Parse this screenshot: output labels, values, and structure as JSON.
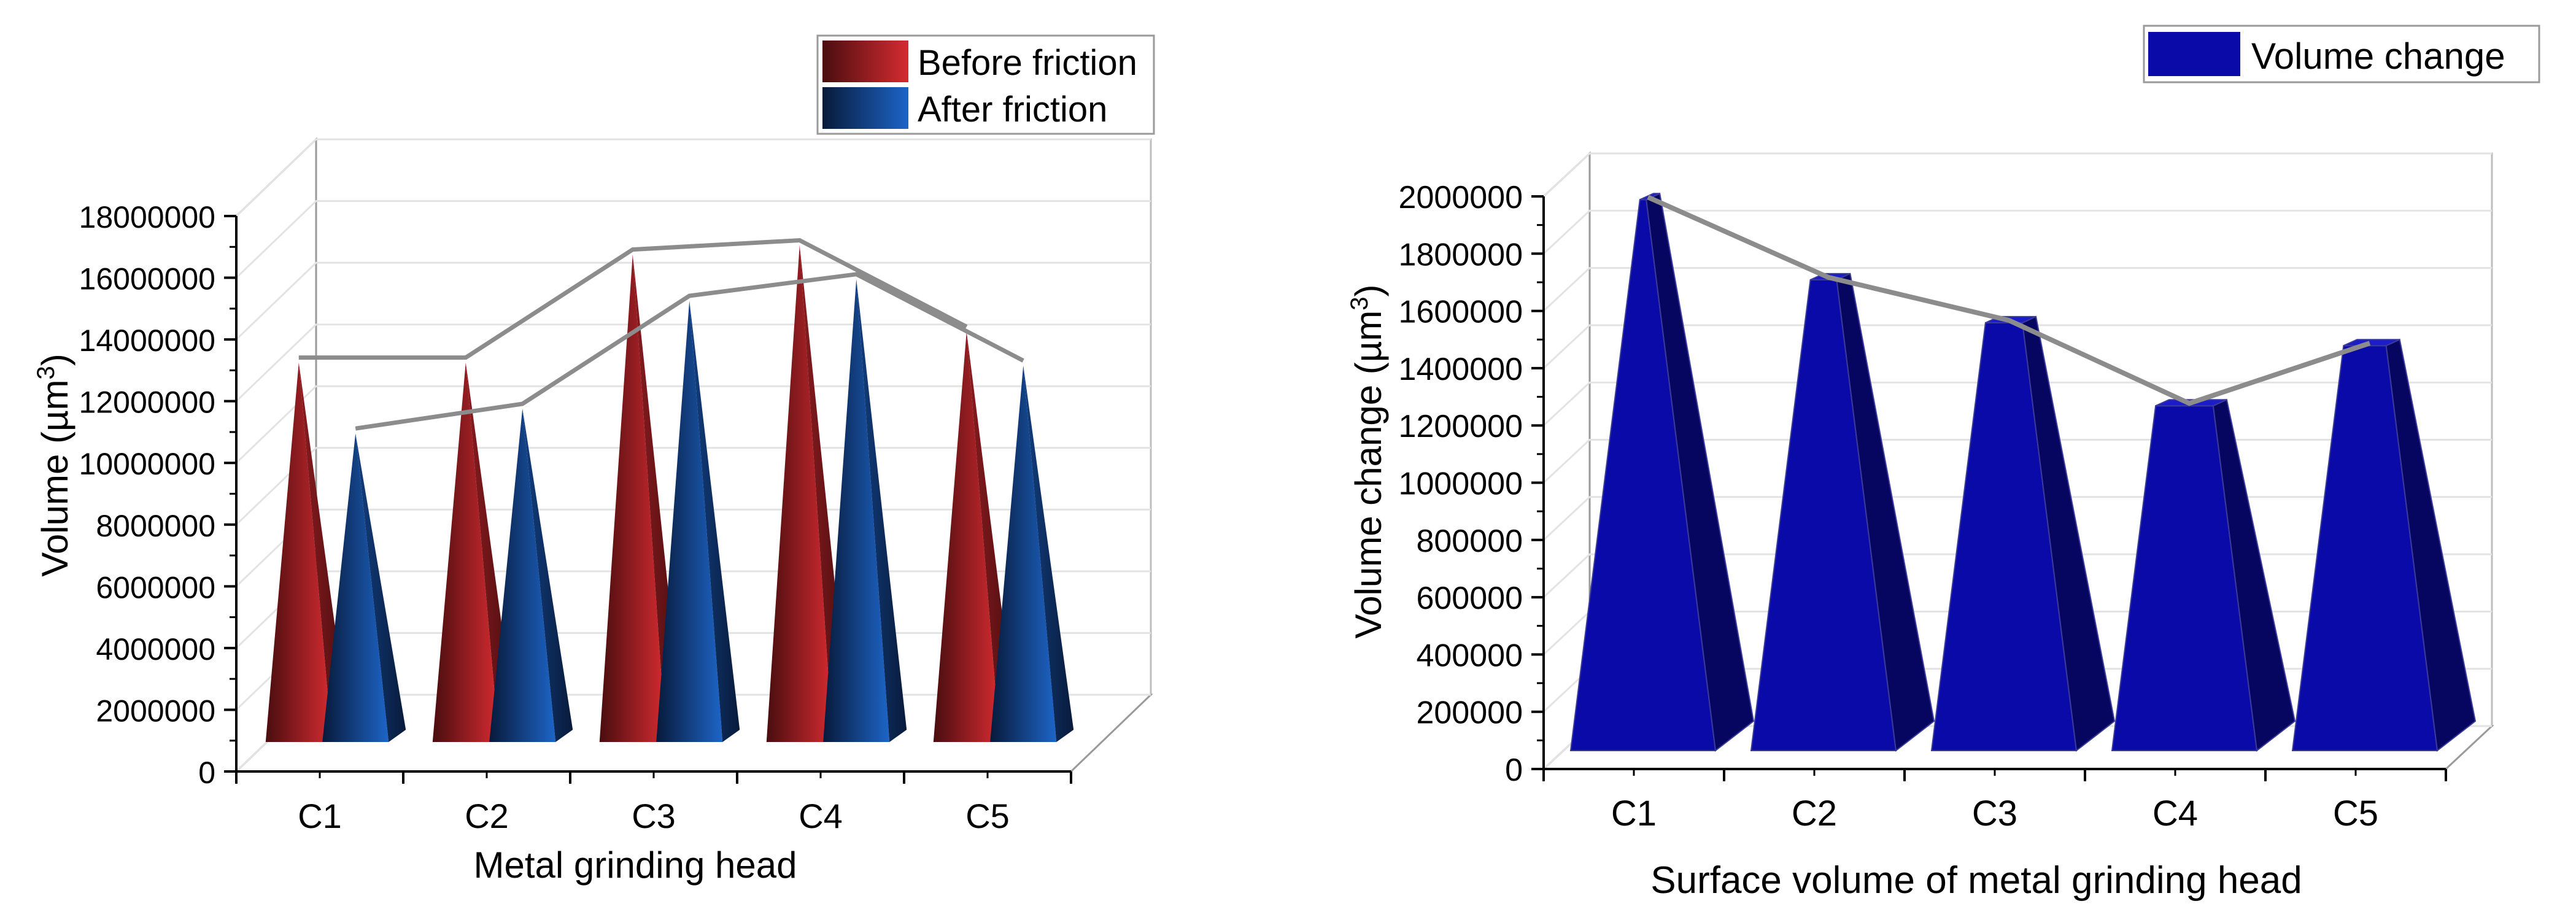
{
  "colors": {
    "before": "#d42b31",
    "before_dark": "#4a0d0f",
    "after": "#1d65c8",
    "after_dark": "#081a3a",
    "volume": "#0a0aa8",
    "volume_dark": "#060660",
    "trend_line": "#8c8c8c",
    "grid": "#e3e3e3",
    "axis": "#000000"
  },
  "chart_data": [
    {
      "type": "bar",
      "style": "3d-cone",
      "title": "",
      "xlabel": "Metal grinding head",
      "ylabel_prefix": "Volume (µm",
      "ylabel_sup": "3",
      "ylabel_suffix": ")",
      "categories": [
        "C1",
        "C2",
        "C3",
        "C4",
        "C5"
      ],
      "ylim": [
        0,
        18000000
      ],
      "yticks": [
        0,
        2000000,
        4000000,
        6000000,
        8000000,
        10000000,
        12000000,
        14000000,
        16000000,
        18000000
      ],
      "ytick_labels": [
        "0",
        "2000000",
        "4000000",
        "6000000",
        "8000000",
        "10000000",
        "12000000",
        "14000000",
        "16000000",
        "18000000"
      ],
      "grid": true,
      "legend_position": "top-right",
      "series": [
        {
          "name": "Before friction",
          "values": [
            12300000,
            12300000,
            15800000,
            16100000,
            13300000
          ]
        },
        {
          "name": "After friction",
          "values": [
            10000000,
            10800000,
            14300000,
            15000000,
            12200000
          ]
        }
      ]
    },
    {
      "type": "bar",
      "style": "3d-pyramid",
      "title": "",
      "xlabel": "Surface volume of metal grinding head",
      "ylabel_prefix": "Volume change (µm",
      "ylabel_sup": "3",
      "ylabel_suffix": ")",
      "categories": [
        "C1",
        "C2",
        "C3",
        "C4",
        "C5"
      ],
      "ylim": [
        0,
        2000000
      ],
      "yticks": [
        0,
        200000,
        400000,
        600000,
        800000,
        1000000,
        1200000,
        1400000,
        1600000,
        1800000,
        2000000
      ],
      "ytick_labels": [
        "0",
        "200000",
        "400000",
        "600000",
        "800000",
        "1000000",
        "1200000",
        "1400000",
        "1600000",
        "1800000",
        "2000000"
      ],
      "grid": true,
      "legend_position": "top-right",
      "series": [
        {
          "name": "Volume change",
          "values": [
            1950000,
            1670000,
            1520000,
            1230000,
            1440000
          ]
        }
      ]
    }
  ]
}
